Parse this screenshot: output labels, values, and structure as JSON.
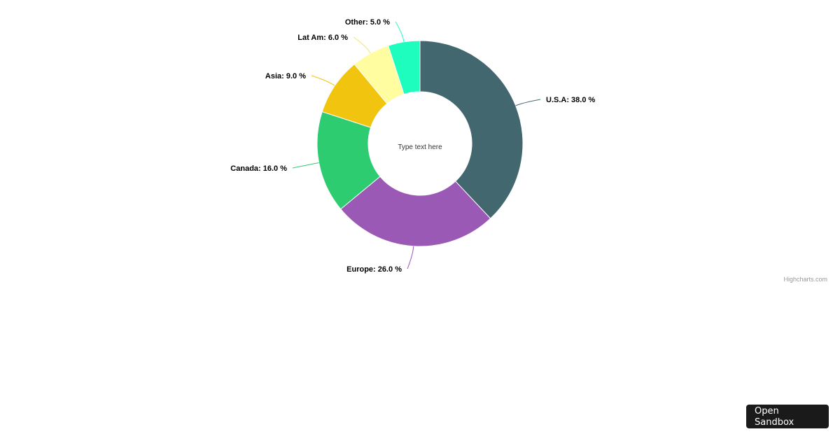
{
  "chart_data": {
    "type": "pie",
    "variant": "donut",
    "center_text": "Type text here",
    "label_format": "{name}: {value} %",
    "slices": [
      {
        "name": "U.S.A",
        "value": 38.0,
        "color": "#43676f"
      },
      {
        "name": "Europe",
        "value": 26.0,
        "color": "#9b59b6"
      },
      {
        "name": "Canada",
        "value": 16.0,
        "color": "#2ecc71"
      },
      {
        "name": "Asia",
        "value": 9.0,
        "color": "#f1c40f"
      },
      {
        "name": "Lat Am",
        "value": 6.0,
        "color": "#fffda0"
      },
      {
        "name": "Other",
        "value": 5.0,
        "color": "#1ffdbe"
      }
    ],
    "label_text": [
      "U.S.A: 38.0 %",
      "Europe: 26.0 %",
      "Canada: 16.0 %",
      "Asia: 9.0 %",
      "Lat Am: 6.0 %",
      "Other: 5.0 %"
    ]
  },
  "credits": "Highcharts.com",
  "sandbox_button": "Open Sandbox"
}
